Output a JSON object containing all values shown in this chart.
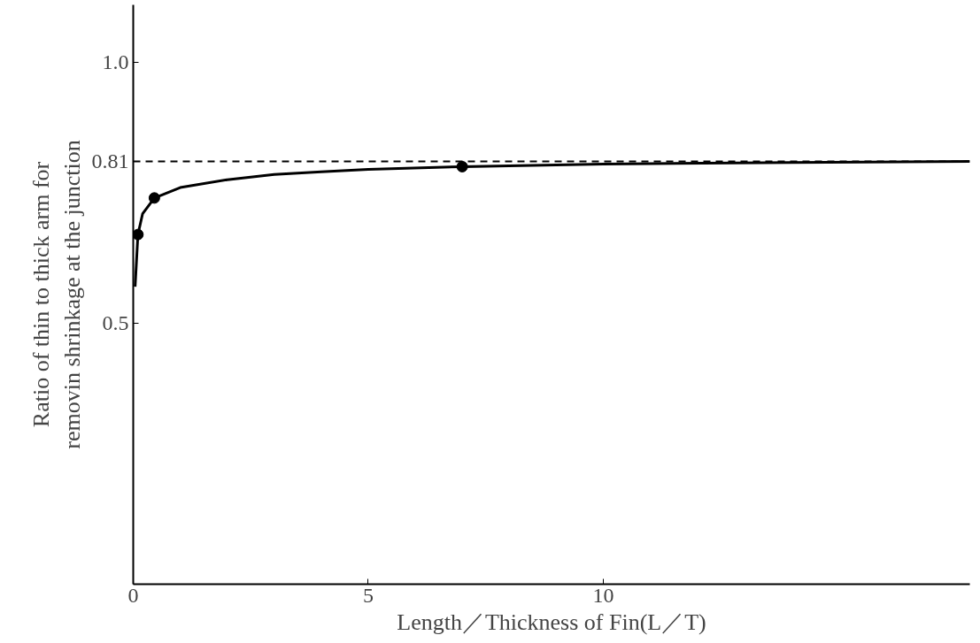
{
  "chart_data": {
    "type": "line",
    "xlabel": "Length／Thickness of Fin(L／T)",
    "ylabel": "Ratio of thin to thick arm for\nremovin shrinkage at the junction",
    "xlim": [
      0,
      17.8
    ],
    "ylim": [
      0,
      1.11
    ],
    "xticks": [
      0,
      5,
      10
    ],
    "yticks": [
      0.5,
      0.81,
      {
        "value": 1.0,
        "label": "1.0"
      }
    ],
    "grid": false,
    "series": [
      {
        "color": "#000000",
        "marker": "none",
        "line_style": "solid",
        "x": [
          0.04,
          0.1,
          0.2,
          0.45,
          1,
          2,
          3,
          4,
          5,
          7,
          10,
          14,
          17.8
        ],
        "values": [
          0.57,
          0.67,
          0.71,
          0.74,
          0.76,
          0.775,
          0.785,
          0.79,
          0.795,
          0.8,
          0.805,
          0.808,
          0.81
        ]
      },
      {
        "type": "scatter",
        "color": "#000000",
        "marker": "circle",
        "x": [
          0.1,
          0.45,
          7
        ],
        "values": [
          0.67,
          0.74,
          0.8
        ]
      }
    ],
    "ref_lines": [
      {
        "axis": "y",
        "value": 0.81,
        "color": "#000000",
        "line_style": "dashed"
      }
    ]
  }
}
